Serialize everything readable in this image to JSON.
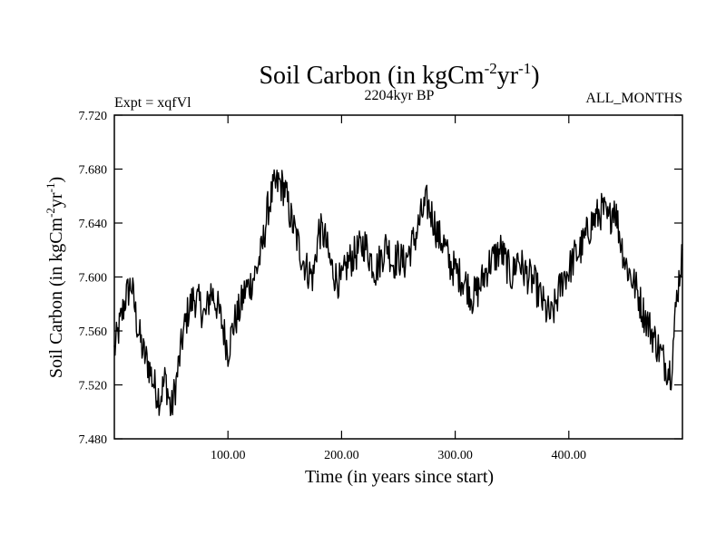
{
  "chart_data": {
    "type": "line",
    "title": {
      "text": "Soil Carbon (in kgCm",
      "exp1": "-2",
      "mid": "yr",
      "exp2": "-1",
      "close": ")"
    },
    "ylabel": {
      "text": "Soil Carbon (in kgCm",
      "exp1": "-2",
      "mid": "yr",
      "exp2": "-1",
      "close": ")"
    },
    "subtitle_left": "Expt = xqfVl",
    "subtitle_center": "2204kyr BP",
    "subtitle_right": "ALL_MONTHS",
    "xlabel": "Time (in years since start)",
    "xlim": [
      0,
      500
    ],
    "ylim": [
      7.48,
      7.72
    ],
    "xticks": [
      100,
      200,
      300,
      400
    ],
    "xtick_labels": [
      "100.00",
      "200.00",
      "300.00",
      "400.00"
    ],
    "yticks": [
      7.48,
      7.52,
      7.56,
      7.6,
      7.64,
      7.68,
      7.72
    ],
    "ytick_labels": [
      "7.480",
      "7.520",
      "7.560",
      "7.600",
      "7.640",
      "7.680",
      "7.720"
    ],
    "series": [
      {
        "name": "Soil Carbon",
        "color": "#000000",
        "x": [
          0,
          5,
          10,
          15,
          20,
          25,
          30,
          35,
          40,
          45,
          50,
          55,
          60,
          65,
          70,
          75,
          80,
          85,
          90,
          95,
          100,
          105,
          110,
          115,
          120,
          125,
          130,
          135,
          140,
          145,
          150,
          155,
          160,
          165,
          170,
          175,
          180,
          185,
          190,
          195,
          200,
          205,
          210,
          215,
          220,
          225,
          230,
          235,
          240,
          245,
          250,
          255,
          260,
          265,
          270,
          275,
          280,
          285,
          290,
          295,
          300,
          305,
          310,
          315,
          320,
          325,
          330,
          335,
          340,
          345,
          350,
          355,
          360,
          365,
          370,
          375,
          380,
          385,
          390,
          395,
          400,
          405,
          410,
          415,
          420,
          425,
          430,
          435,
          440,
          445,
          450,
          455,
          460,
          465,
          470,
          475,
          480,
          485,
          490,
          495,
          500
        ],
        "values": [
          7.545,
          7.565,
          7.585,
          7.595,
          7.565,
          7.545,
          7.535,
          7.52,
          7.51,
          7.525,
          7.5,
          7.525,
          7.555,
          7.575,
          7.585,
          7.58,
          7.57,
          7.59,
          7.58,
          7.565,
          7.545,
          7.565,
          7.575,
          7.59,
          7.595,
          7.605,
          7.62,
          7.65,
          7.665,
          7.67,
          7.665,
          7.645,
          7.63,
          7.615,
          7.605,
          7.6,
          7.635,
          7.63,
          7.61,
          7.6,
          7.595,
          7.61,
          7.615,
          7.62,
          7.625,
          7.615,
          7.605,
          7.615,
          7.625,
          7.61,
          7.615,
          7.61,
          7.62,
          7.63,
          7.645,
          7.655,
          7.645,
          7.63,
          7.625,
          7.61,
          7.605,
          7.6,
          7.595,
          7.585,
          7.59,
          7.6,
          7.61,
          7.615,
          7.62,
          7.61,
          7.6,
          7.615,
          7.605,
          7.6,
          7.595,
          7.585,
          7.575,
          7.57,
          7.585,
          7.6,
          7.605,
          7.615,
          7.62,
          7.63,
          7.64,
          7.645,
          7.65,
          7.64,
          7.655,
          7.63,
          7.61,
          7.6,
          7.59,
          7.575,
          7.565,
          7.555,
          7.545,
          7.535,
          7.53,
          7.585,
          7.62
        ]
      }
    ]
  }
}
